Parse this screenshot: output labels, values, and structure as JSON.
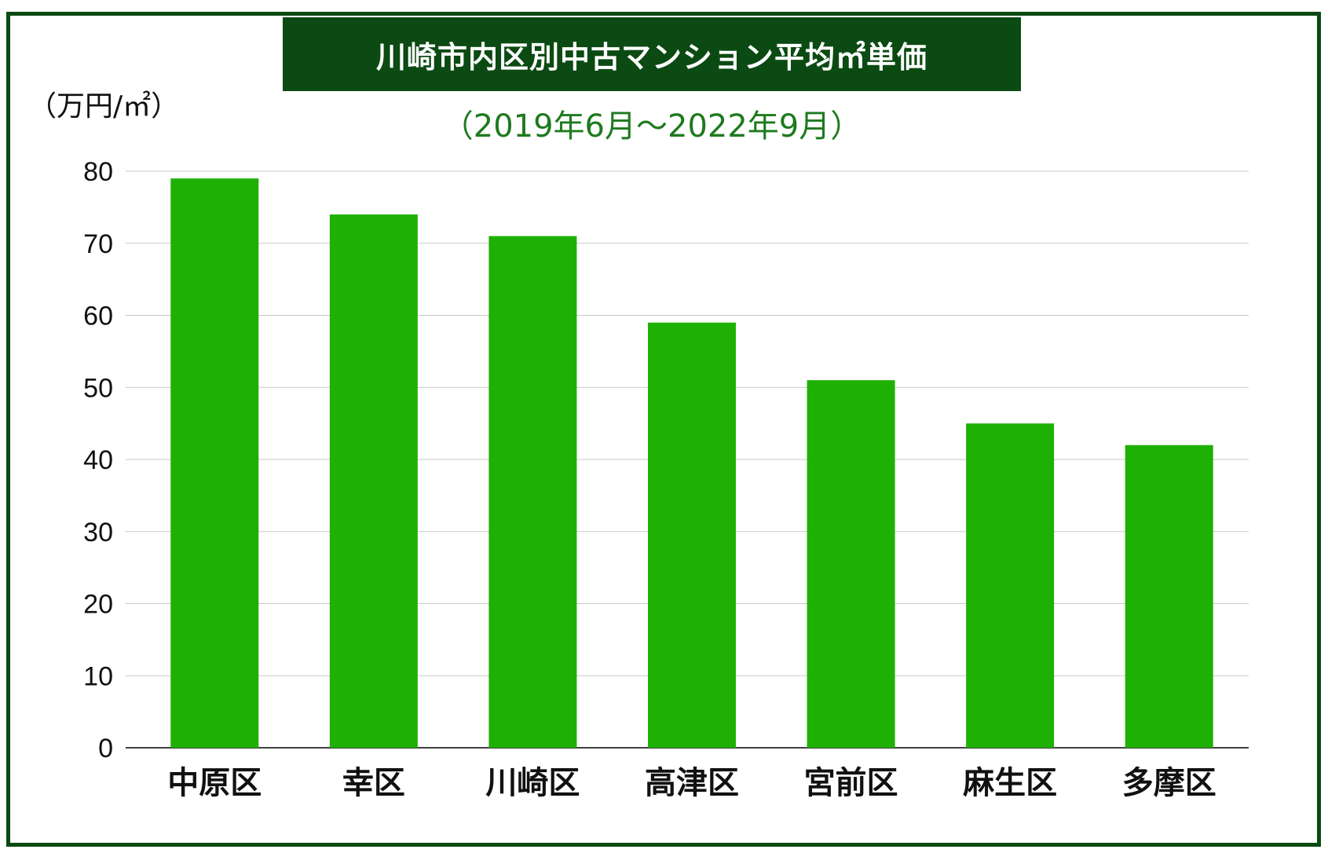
{
  "chart_data": {
    "type": "bar",
    "title": "川崎市内区別中古マンション平均㎡単価",
    "subtitle": "（2019年6月〜2022年9月）",
    "ylabel": "（万円/㎡）",
    "xlabel": "",
    "categories": [
      "中原区",
      "幸区",
      "川崎区",
      "高津区",
      "宮前区",
      "麻生区",
      "多摩区"
    ],
    "values": [
      79,
      74,
      71,
      59,
      51,
      45,
      42
    ],
    "ylim": [
      0,
      80
    ],
    "yticks": [
      0,
      10,
      20,
      30,
      40,
      50,
      60,
      70,
      80
    ],
    "grid": true,
    "bar_color": "#1fb006",
    "title_bg_color": "#0b4a12",
    "subtitle_color": "#1e7a1e"
  }
}
